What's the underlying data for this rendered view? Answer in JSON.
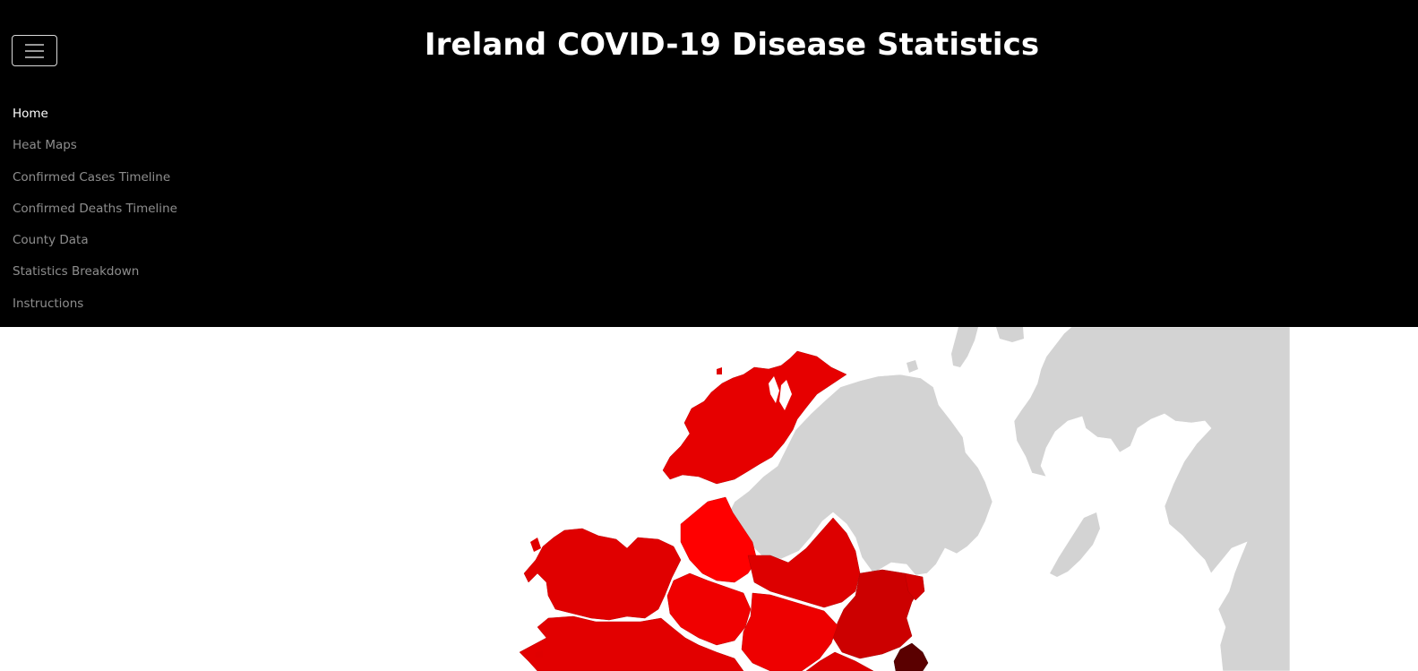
{
  "header": {
    "title": "Ireland COVID-19 Disease Statistics",
    "menu_toggle": "hamburger-icon"
  },
  "nav": {
    "items": [
      {
        "label": "Home",
        "active": true
      },
      {
        "label": "Heat Maps",
        "active": false
      },
      {
        "label": "Confirmed Cases Timeline",
        "active": false
      },
      {
        "label": "Confirmed Deaths Timeline",
        "active": false
      },
      {
        "label": "County Data",
        "active": false
      },
      {
        "label": "Statistics Breakdown",
        "active": false
      },
      {
        "label": "Instructions",
        "active": false
      }
    ]
  },
  "map": {
    "type": "choropleth",
    "subject": "Ireland counties",
    "colors": {
      "background_land": "#d3d3d3",
      "low": "#ff0000",
      "mid": "#e00000",
      "high": "#c40000",
      "highest": "#5a0000",
      "water": "#ffffff"
    }
  }
}
